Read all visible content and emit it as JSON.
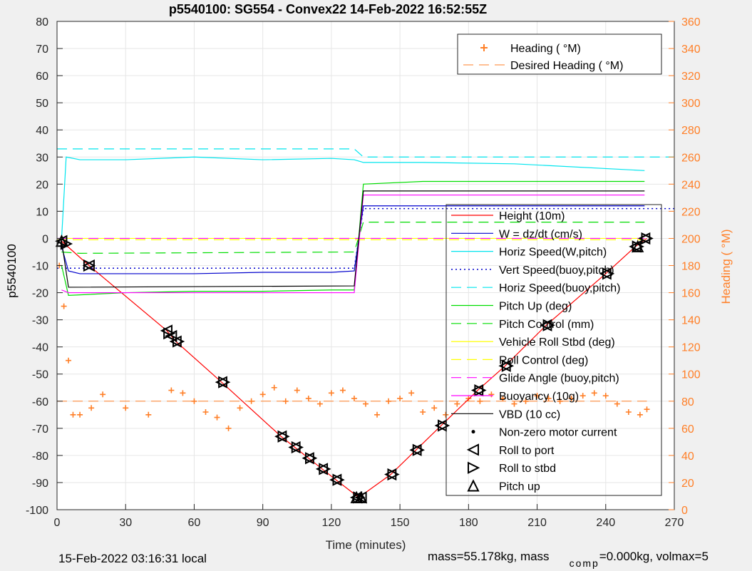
{
  "chart_data": {
    "type": "line",
    "title": "p5540100: SG554 - Convex22 14-Feb-2022 16:52:55Z",
    "xlabel": "Time (minutes)",
    "ylabel": "p5540100",
    "y2label": "Heading (  °M)",
    "xlim": [
      0,
      270
    ],
    "ylim": [
      -100,
      80
    ],
    "y2lim": [
      0,
      360
    ],
    "xticks": [
      "0",
      "30",
      "60",
      "90",
      "120",
      "150",
      "180",
      "210",
      "240",
      "270"
    ],
    "yticks": [
      "80",
      "70",
      "60",
      "50",
      "40",
      "30",
      "20",
      "10",
      "0",
      "-10",
      "-20",
      "-30",
      "-40",
      "-50",
      "-60",
      "-70",
      "-80",
      "-90",
      "-100"
    ],
    "y2ticks": [
      "360",
      "340",
      "320",
      "300",
      "280",
      "260",
      "240",
      "220",
      "200",
      "180",
      "160",
      "140",
      "120",
      "100",
      "80",
      "60",
      "40",
      "20",
      "0"
    ],
    "grid": true,
    "series": [
      {
        "name": "Height (10m)",
        "color": "#ff0000",
        "x": [
          2,
          14,
          48,
          52,
          72,
          98,
          104,
          110,
          116,
          122,
          132,
          146,
          157,
          168,
          184,
          196,
          214,
          240,
          253,
          258
        ],
        "y": [
          -1,
          -10,
          -34,
          -38,
          -53,
          -73,
          -77,
          -81,
          -85,
          -89,
          -95.5,
          -87,
          -78,
          -69,
          -56,
          -47,
          -32,
          -13,
          -3,
          0
        ]
      },
      {
        "name": "W = dz/dt (cm/s)",
        "color": "#0000cc",
        "x": [
          2,
          5,
          10,
          30,
          60,
          90,
          120,
          130,
          134,
          160,
          200,
          257
        ],
        "y": [
          -3,
          -12,
          -13,
          -13,
          -13,
          -12.5,
          -12.5,
          -12,
          12,
          12,
          12,
          12
        ]
      },
      {
        "name": "Horiz Speed(W,pitch)",
        "color": "#00e5ee",
        "x": [
          2,
          4,
          10,
          30,
          60,
          90,
          120,
          130,
          134,
          160,
          200,
          257
        ],
        "y": [
          0,
          30,
          29,
          29,
          30,
          29,
          29.5,
          29,
          28,
          28,
          27.5,
          25
        ]
      },
      {
        "name": "Vert Speed(buoy,pitch)",
        "color": "#0000cc",
        "x": [
          0,
          130,
          134,
          270
        ],
        "y": [
          -11,
          -11,
          11,
          11
        ]
      },
      {
        "name": "Horiz Speed(buoy,pitch)",
        "color": "#00e5ee",
        "x": [
          0,
          130,
          134,
          270
        ],
        "y": [
          33,
          33,
          30,
          30
        ]
      },
      {
        "name": "Pitch Up (deg)",
        "color": "#00dd00",
        "x": [
          2,
          5,
          30,
          60,
          90,
          120,
          130,
          134,
          160,
          200,
          257
        ],
        "y": [
          -10,
          -21,
          -20,
          -19.5,
          -19.5,
          -19,
          -19,
          20,
          21,
          21,
          21
        ]
      },
      {
        "name": "Pitch Control (mm)",
        "color": "#00dd00",
        "x": [
          2,
          10,
          130,
          134,
          257
        ],
        "y": [
          -5,
          -5.5,
          -5,
          6,
          6
        ]
      },
      {
        "name": "Vehicle Roll Stbd (deg)",
        "color": "#ffff00",
        "x": [
          2,
          10,
          60,
          120,
          130,
          134,
          200,
          257
        ],
        "y": [
          0,
          0,
          0,
          0,
          0,
          0,
          0,
          0
        ]
      },
      {
        "name": "Roll Control (deg)",
        "color": "#ffff00",
        "x": [
          0,
          257
        ],
        "y": [
          -0.5,
          -0.5
        ]
      },
      {
        "name": "Glide Angle (buoy,pitch)",
        "color": "#ff00ff",
        "x": [
          0,
          257
        ],
        "y": [
          0,
          0
        ]
      },
      {
        "name": "Buoyancy (10g)",
        "color": "#ff00ff",
        "x": [
          2,
          5,
          130,
          134,
          257
        ],
        "y": [
          -19,
          -20,
          -20,
          16,
          16
        ]
      },
      {
        "name": "VBD (10 cc)",
        "color": "#000000",
        "x": [
          2,
          5,
          130,
          134,
          257
        ],
        "y": [
          -1,
          -18,
          -17.5,
          17.5,
          17.5
        ]
      },
      {
        "name": "Non-zero motor current",
        "color": "#000000",
        "x": [
          132
        ],
        "y": [
          -95.5
        ]
      },
      {
        "name": "Roll to port",
        "color": "#000000",
        "x": [
          2,
          14,
          48,
          50,
          52,
          72,
          98,
          104,
          110,
          116,
          122,
          131,
          133,
          146,
          157,
          168,
          184,
          196,
          214,
          240,
          253,
          257
        ],
        "y": [
          -1,
          -10,
          -34,
          -36,
          -38,
          -53,
          -73,
          -77,
          -81,
          -85,
          -89,
          -95.5,
          -95.5,
          -87,
          -78,
          -69,
          -56,
          -47,
          -32,
          -13,
          -3,
          0
        ]
      },
      {
        "name": "Roll to stbd",
        "color": "#000000",
        "x": [
          4,
          14,
          49,
          53,
          73,
          99,
          105,
          111,
          117,
          123,
          132,
          147,
          158,
          169,
          185,
          197,
          215,
          241,
          254,
          258
        ],
        "y": [
          -2,
          -10,
          -35,
          -38,
          -53,
          -73,
          -77,
          -81,
          -85,
          -89,
          -95.5,
          -87,
          -78,
          -69,
          -56,
          -47,
          -32,
          -13,
          -3,
          0
        ]
      },
      {
        "name": "Pitch up",
        "color": "#000000",
        "x": [
          2,
          131,
          133,
          254
        ],
        "y": [
          -1,
          -95.5,
          -95.5,
          -3
        ]
      }
    ],
    "y2_series": [
      {
        "name": "Heading (  °M)",
        "color": "#ff7f27",
        "x": [
          1,
          3,
          5,
          7,
          10,
          15,
          20,
          30,
          40,
          50,
          55,
          60,
          65,
          70,
          75,
          80,
          85,
          90,
          95,
          100,
          105,
          110,
          115,
          120,
          125,
          130,
          135,
          140,
          145,
          150,
          155,
          160,
          165,
          170,
          175,
          180,
          185,
          190,
          195,
          200,
          205,
          210,
          215,
          220,
          225,
          230,
          235,
          240,
          245,
          250,
          255,
          258
        ],
        "y": [
          180,
          150,
          110,
          70,
          70,
          75,
          85,
          75,
          70,
          88,
          86,
          80,
          72,
          68,
          60,
          75,
          80,
          85,
          90,
          80,
          88,
          82,
          78,
          86,
          88,
          82,
          78,
          70,
          80,
          82,
          86,
          72,
          75,
          70,
          78,
          82,
          80,
          85,
          82,
          78,
          80,
          84,
          82,
          80,
          82,
          84,
          86,
          84,
          78,
          72,
          70,
          74
        ]
      },
      {
        "name": "Desired Heading (   °M)",
        "color": "#ff7f27",
        "x": [
          0,
          258
        ],
        "y": [
          80,
          80
        ]
      }
    ],
    "legend_main": [
      "Height (10m)",
      "W = dz/dt (cm/s)",
      "Horiz Speed(W,pitch)",
      "Vert Speed(buoy,pitch)",
      "Horiz Speed(buoy,pitch)",
      "Pitch Up (deg)",
      "Pitch Control (mm)",
      "Vehicle Roll Stbd (deg)",
      "Roll Control (deg)",
      "Glide Angle (buoy,pitch)",
      "Buoyancy (10g)",
      "VBD (10 cc)",
      "Non-zero motor current",
      "Roll to port",
      "Roll to stbd",
      "Pitch up"
    ],
    "legend_heading": [
      "Heading (  °M)",
      "Desired Heading (   °M)"
    ],
    "legend_placement": "right"
  },
  "footer": {
    "local_time": "15-Feb-2022 03:16:31 local",
    "mass_text": "mass=55.178kg, mass",
    "comp_sub": "comp",
    "volmax_text": "=0.000kg, volmax=5"
  },
  "colors": {
    "heading": "#ff7f27",
    "background": "#f0f0f0",
    "axes": "#ffffff"
  }
}
